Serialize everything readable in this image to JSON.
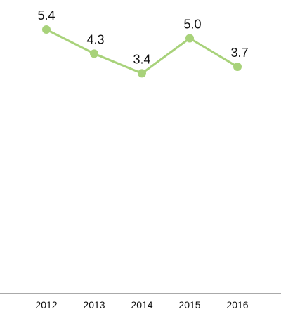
{
  "chart_data": {
    "type": "line",
    "title": "",
    "xlabel": "",
    "ylabel": "",
    "categories": [
      "2012",
      "2013",
      "2014",
      "2015",
      "2016"
    ],
    "series": [
      {
        "values": [
          5.4,
          4.3,
          3.4,
          5.0,
          3.7
        ],
        "labels": [
          "5.4",
          "4.3",
          "3.4",
          "5.0",
          "3.7"
        ]
      }
    ],
    "ylim": [
      0,
      5.4
    ],
    "grid": false,
    "legend": "none",
    "colors": {
      "line": "#a8d27a",
      "marker": "#a8d27a",
      "axis": "#555555",
      "text": "#111111"
    }
  }
}
